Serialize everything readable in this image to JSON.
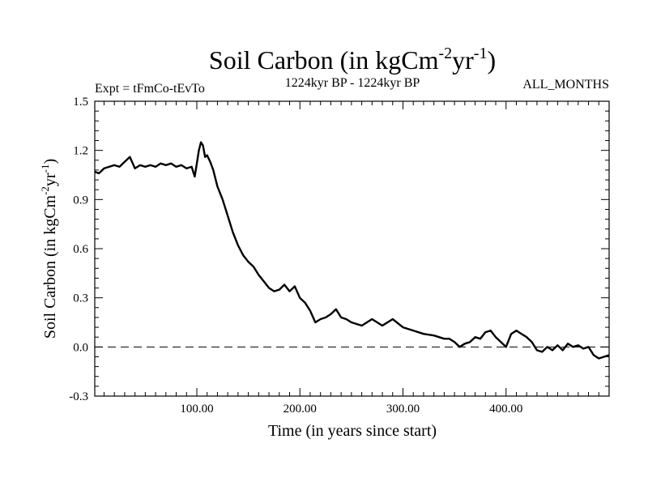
{
  "chart_data": {
    "type": "line",
    "title": {
      "prefix": "Soil Carbon (in kgCm",
      "sup1": "-2",
      "mid": "yr",
      "sup2": "-1",
      "suffix": ")"
    },
    "subtitle_left": "Expt = tFmCo-tEvTo",
    "subtitle_center": "1224kyr BP - 1224kyr BP",
    "subtitle_right": "ALL_MONTHS",
    "xlabel": "Time (in years since start)",
    "ylabel": {
      "prefix": "Soil Carbon (in kgCm",
      "sup1": "-2",
      "mid": "yr",
      "sup2": "-1",
      "suffix": ")"
    },
    "xlim": [
      1,
      500
    ],
    "ylim": [
      -0.3,
      1.5
    ],
    "xticks": [
      {
        "value": 100,
        "label": "100.00"
      },
      {
        "value": 200,
        "label": "200.00"
      },
      {
        "value": 300,
        "label": "300.00"
      },
      {
        "value": 400,
        "label": "400.00"
      }
    ],
    "yticks": [
      {
        "value": -0.3,
        "label": "-0.3"
      },
      {
        "value": 0.0,
        "label": "0.0"
      },
      {
        "value": 0.3,
        "label": "0.3"
      },
      {
        "value": 0.6,
        "label": "0.6"
      },
      {
        "value": 0.9,
        "label": "0.9"
      },
      {
        "value": 1.2,
        "label": "1.2"
      },
      {
        "value": 1.5,
        "label": "1.5"
      }
    ],
    "reference_line": 0.0,
    "grid": false,
    "series": [
      {
        "name": "Soil Carbon",
        "x": [
          1,
          5,
          10,
          15,
          20,
          25,
          30,
          35,
          40,
          45,
          50,
          55,
          60,
          65,
          70,
          75,
          80,
          85,
          90,
          95,
          98,
          100,
          102,
          104,
          106,
          108,
          110,
          113,
          116,
          120,
          125,
          130,
          135,
          140,
          145,
          150,
          155,
          160,
          165,
          170,
          175,
          180,
          185,
          190,
          195,
          200,
          205,
          210,
          215,
          220,
          225,
          230,
          235,
          240,
          245,
          250,
          260,
          270,
          280,
          290,
          300,
          310,
          320,
          330,
          340,
          345,
          350,
          355,
          360,
          365,
          370,
          375,
          380,
          385,
          390,
          395,
          400,
          405,
          410,
          415,
          420,
          425,
          430,
          435,
          440,
          445,
          450,
          455,
          460,
          465,
          470,
          475,
          480,
          485,
          490,
          495,
          500
        ],
        "y": [
          1.07,
          1.06,
          1.09,
          1.1,
          1.11,
          1.1,
          1.13,
          1.16,
          1.09,
          1.11,
          1.1,
          1.11,
          1.1,
          1.12,
          1.11,
          1.12,
          1.1,
          1.11,
          1.09,
          1.1,
          1.04,
          1.12,
          1.2,
          1.25,
          1.23,
          1.16,
          1.17,
          1.13,
          1.08,
          0.98,
          0.9,
          0.8,
          0.7,
          0.62,
          0.56,
          0.52,
          0.49,
          0.44,
          0.4,
          0.36,
          0.34,
          0.35,
          0.38,
          0.34,
          0.37,
          0.3,
          0.27,
          0.22,
          0.15,
          0.17,
          0.18,
          0.2,
          0.23,
          0.18,
          0.17,
          0.15,
          0.13,
          0.17,
          0.13,
          0.17,
          0.12,
          0.1,
          0.08,
          0.07,
          0.05,
          0.05,
          0.03,
          0.0,
          0.02,
          0.03,
          0.06,
          0.05,
          0.09,
          0.1,
          0.06,
          0.03,
          0.0,
          0.08,
          0.1,
          0.08,
          0.06,
          0.03,
          -0.02,
          -0.03,
          0.0,
          -0.02,
          0.01,
          -0.02,
          0.02,
          0.0,
          0.01,
          -0.01,
          0.0,
          -0.05,
          -0.07,
          -0.06,
          -0.05
        ]
      }
    ]
  }
}
